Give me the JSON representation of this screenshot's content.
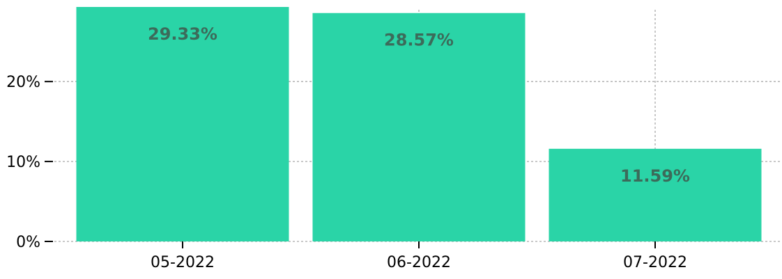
{
  "chart_data": {
    "type": "bar",
    "categories": [
      "05-2022",
      "06-2022",
      "07-2022"
    ],
    "values": [
      29.33,
      28.57,
      11.59
    ],
    "data_labels": [
      "29.33%",
      "28.57%",
      "11.59%"
    ],
    "y_ticks": [
      {
        "value": 0,
        "label": "0%"
      },
      {
        "value": 10,
        "label": "10%"
      },
      {
        "value": 20,
        "label": "20%"
      }
    ],
    "ylim": [
      0,
      29.33
    ],
    "title": "",
    "xlabel": "",
    "ylabel": "",
    "grid": true,
    "legend": "none",
    "colors": {
      "bar": "#2ad4a7",
      "data_label": "#3c6b5a",
      "grid": "#a9a9a9",
      "tick": "#000000"
    }
  }
}
